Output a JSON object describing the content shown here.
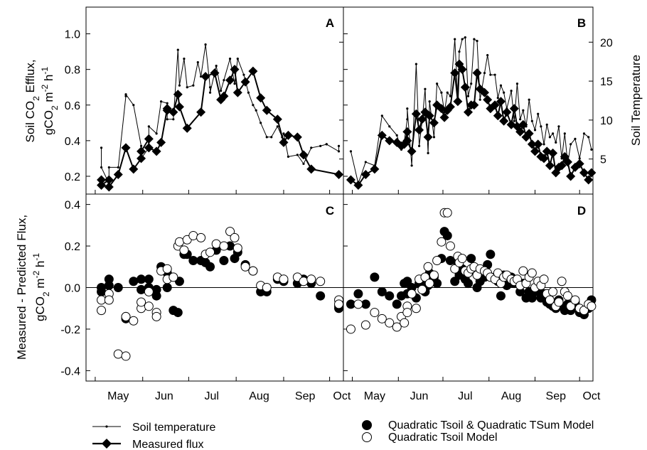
{
  "figure": {
    "y_label_top": {
      "line1": "Soil CO",
      "sub": "2",
      "line1b": " Efflux,",
      "line2a": "gCO",
      "line2sub": "2",
      "line2b": " m",
      "line2sup1": "-2",
      "line2c": " h",
      "line2sup2": "-1"
    },
    "y_label_bottom": {
      "line1": "Measured - Predicted Flux,",
      "line2a": "gCO",
      "line2sub": "2",
      "line2b": " m",
      "line2sup1": "-2",
      "line2c": " h",
      "line2sup2": "-1"
    },
    "y_label_right": "Soil Temperature",
    "month_ticks": [
      "May",
      "Jun",
      "Jul",
      "Aug",
      "Sep",
      "Oct"
    ],
    "legend_left": [
      "Soil temperature",
      "Measured flux"
    ],
    "legend_right": [
      "Quadratic Tsoil & Quadratic TSum Model",
      "Quadratic Tsoil Model"
    ]
  },
  "chart_data": [
    {
      "panel": "A",
      "type": "line",
      "title": "",
      "ylim": [
        0.1,
        1.15
      ],
      "yticks": [
        0.2,
        0.4,
        0.6,
        0.8,
        1.0
      ],
      "temp_ylim": [
        0.5,
        24.5
      ],
      "temp_yticks": [
        5,
        10,
        15,
        20
      ],
      "xlim_day": [
        115,
        283
      ],
      "series": [
        {
          "name": "Soil temperature",
          "x": [
            125,
            125,
            130,
            130,
            136,
            141,
            141,
            146,
            151,
            151,
            156,
            156,
            161,
            164,
            168,
            168,
            172,
            175,
            176,
            179,
            181,
            185,
            188,
            190,
            193,
            196,
            196,
            200,
            203,
            205,
            209,
            212,
            214,
            218,
            221,
            224,
            226,
            229,
            233,
            236,
            240,
            243,
            244,
            247,
            253,
            257,
            262,
            268,
            272,
            272,
            280,
            280
          ],
          "y": [
            0.36,
            0.25,
            0.16,
            0.25,
            0.25,
            0.65,
            0.66,
            0.6,
            0.37,
            0.3,
            0.36,
            0.48,
            0.44,
            0.62,
            0.61,
            0.52,
            0.52,
            0.91,
            0.71,
            0.86,
            0.7,
            0.71,
            0.84,
            0.76,
            0.94,
            0.7,
            0.67,
            0.82,
            0.68,
            0.74,
            0.86,
            0.72,
            0.86,
            0.77,
            0.67,
            0.6,
            0.57,
            0.5,
            0.42,
            0.42,
            0.48,
            0.42,
            0.44,
            0.31,
            0.32,
            0.27,
            0.36,
            0.37,
            0.38,
            0.38,
            0.34,
            0.37
          ]
        },
        {
          "name": "Measured flux",
          "x": [
            125,
            125,
            130,
            130,
            136,
            141,
            146,
            151,
            151,
            156,
            156,
            161,
            164,
            168,
            168,
            172,
            175,
            176,
            181,
            190,
            193,
            199,
            203,
            205,
            209,
            212,
            214,
            219,
            224,
            229,
            233,
            240,
            244,
            247,
            253,
            257,
            262,
            280
          ],
          "y": [
            0.18,
            0.15,
            0.18,
            0.14,
            0.21,
            0.36,
            0.24,
            0.3,
            0.34,
            0.41,
            0.36,
            0.34,
            0.39,
            0.58,
            0.57,
            0.56,
            0.66,
            0.59,
            0.47,
            0.56,
            0.76,
            0.78,
            0.63,
            0.65,
            0.74,
            0.8,
            0.67,
            0.73,
            0.79,
            0.64,
            0.57,
            0.52,
            0.39,
            0.43,
            0.42,
            0.32,
            0.24,
            0.21
          ]
        }
      ]
    },
    {
      "panel": "B",
      "type": "line",
      "title": "",
      "ylim": [
        0.1,
        1.15
      ],
      "yticks": [
        0.2,
        0.4,
        0.6,
        0.8,
        1.0
      ],
      "temp_ylim": [
        0.5,
        24.5
      ],
      "temp_yticks": [
        5,
        10,
        15,
        20
      ],
      "xlim_day": [
        115,
        283
      ],
      "series": [
        {
          "name": "Soil temperature",
          "x": [
            120,
            125,
            130,
            136,
            141,
            146,
            151,
            154,
            156,
            158,
            158,
            161,
            164,
            166,
            168,
            170,
            172,
            173,
            176,
            178,
            181,
            183,
            185,
            187,
            190,
            192,
            193,
            195,
            197,
            199,
            201,
            203,
            205,
            207,
            210,
            212,
            214,
            217,
            219,
            221,
            223,
            225,
            228,
            230,
            232,
            234,
            236,
            238,
            240,
            242,
            244,
            246,
            248,
            250,
            252,
            254,
            256,
            258,
            260,
            262,
            264,
            266,
            268,
            271,
            274,
            277,
            280,
            282
          ],
          "y": [
            0.34,
            0.16,
            0.28,
            0.26,
            0.54,
            0.48,
            0.43,
            0.35,
            0.4,
            0.52,
            0.58,
            0.26,
            0.83,
            0.37,
            0.51,
            0.69,
            0.33,
            0.62,
            0.42,
            0.72,
            0.67,
            0.56,
            0.67,
            0.65,
            0.97,
            0.64,
            0.9,
            0.97,
            0.98,
            0.65,
            0.72,
            0.97,
            0.96,
            0.63,
            0.78,
            0.88,
            0.77,
            0.77,
            0.64,
            0.71,
            0.67,
            0.58,
            0.68,
            0.51,
            0.72,
            0.52,
            0.57,
            0.48,
            0.63,
            0.51,
            0.46,
            0.55,
            0.48,
            0.38,
            0.49,
            0.42,
            0.44,
            0.39,
            0.48,
            0.3,
            0.44,
            0.27,
            0.38,
            0.41,
            0.3,
            0.44,
            0.42,
            0.35
          ]
        },
        {
          "name": "Measured flux",
          "x": [
            120,
            125,
            130,
            136,
            141,
            146,
            151,
            154,
            156,
            158,
            158,
            161,
            164,
            166,
            168,
            170,
            172,
            173,
            176,
            178,
            181,
            183,
            185,
            187,
            190,
            192,
            193,
            195,
            197,
            199,
            201,
            203,
            205,
            207,
            210,
            212,
            214,
            217,
            219,
            221,
            223,
            225,
            228,
            230,
            232,
            234,
            236,
            238,
            240,
            242,
            244,
            246,
            248,
            250,
            252,
            254,
            256,
            258,
            260,
            262,
            264,
            266,
            268,
            271,
            274,
            277,
            280,
            282
          ],
          "y": [
            0.18,
            0.15,
            0.21,
            0.24,
            0.43,
            0.4,
            0.39,
            0.37,
            0.38,
            0.45,
            0.4,
            0.34,
            0.55,
            0.46,
            0.52,
            0.56,
            0.42,
            0.54,
            0.5,
            0.6,
            0.58,
            0.53,
            0.57,
            0.59,
            0.78,
            0.62,
            0.83,
            0.8,
            0.7,
            0.56,
            0.6,
            0.6,
            0.78,
            0.69,
            0.67,
            0.63,
            0.58,
            0.6,
            0.54,
            0.62,
            0.51,
            0.56,
            0.49,
            0.58,
            0.48,
            0.45,
            0.49,
            0.42,
            0.44,
            0.38,
            0.34,
            0.38,
            0.31,
            0.3,
            0.34,
            0.26,
            0.33,
            0.22,
            0.25,
            0.26,
            0.31,
            0.28,
            0.2,
            0.25,
            0.27,
            0.22,
            0.18,
            0.22
          ]
        }
      ]
    },
    {
      "panel": "C",
      "type": "scatter",
      "title": "",
      "ylim": [
        -0.45,
        0.45
      ],
      "yticks": [
        -0.4,
        -0.2,
        0.0,
        0.2,
        0.4
      ],
      "xlim_day": [
        115,
        283
      ],
      "series": [
        {
          "name": "Quadratic Tsoil & Quadratic TSum Model",
          "x": [
            125,
            125,
            130,
            130,
            136,
            141,
            141,
            146,
            151,
            151,
            156,
            156,
            161,
            161,
            164,
            168,
            168,
            172,
            175,
            176,
            179,
            181,
            185,
            190,
            193,
            196,
            200,
            205,
            209,
            212,
            214,
            219,
            224,
            229,
            233,
            240,
            244,
            253,
            257,
            262,
            268,
            280,
            280
          ],
          "y": [
            0.0,
            -0.02,
            0.01,
            0.04,
            0.0,
            -0.14,
            -0.15,
            0.03,
            0.04,
            -0.01,
            0.04,
            0.0,
            -0.04,
            -0.01,
            0.1,
            0.0,
            0.07,
            -0.11,
            -0.12,
            0.03,
            0.16,
            0.16,
            0.13,
            0.13,
            0.12,
            0.1,
            0.18,
            0.13,
            0.2,
            0.14,
            0.17,
            0.11,
            0.08,
            -0.02,
            -0.02,
            0.04,
            0.03,
            0.02,
            0.04,
            0.02,
            -0.04,
            -0.09,
            -0.1
          ]
        },
        {
          "name": "Quadratic Tsoil Model",
          "x": [
            125,
            125,
            130,
            130,
            136,
            141,
            141,
            146,
            151,
            151,
            156,
            156,
            161,
            161,
            164,
            168,
            168,
            172,
            175,
            176,
            179,
            181,
            185,
            190,
            193,
            196,
            200,
            205,
            209,
            212,
            214,
            219,
            224,
            229,
            233,
            240,
            244,
            253,
            257,
            262,
            268,
            280,
            280
          ],
          "y": [
            -0.06,
            -0.11,
            -0.03,
            -0.06,
            -0.32,
            -0.33,
            -0.14,
            -0.16,
            -0.1,
            -0.07,
            -0.09,
            -0.02,
            -0.12,
            -0.14,
            0.08,
            0.09,
            0.04,
            0.05,
            0.2,
            0.22,
            0.18,
            0.23,
            0.25,
            0.24,
            0.16,
            0.17,
            0.21,
            0.2,
            0.27,
            0.24,
            0.19,
            0.1,
            0.08,
            0.01,
            0.0,
            0.05,
            0.04,
            0.05,
            0.03,
            0.04,
            0.03,
            -0.06,
            -0.08
          ]
        }
      ]
    },
    {
      "panel": "D",
      "type": "scatter",
      "title": "",
      "ylim": [
        -0.45,
        0.45
      ],
      "yticks": [
        -0.4,
        -0.2,
        0.0,
        0.2,
        0.4
      ],
      "xlim_day": [
        115,
        283
      ],
      "series": [
        {
          "name": "Quadratic Tsoil & Quadratic TSum Model",
          "x": [
            120,
            125,
            130,
            136,
            141,
            146,
            151,
            154,
            156,
            158,
            158,
            161,
            164,
            166,
            168,
            170,
            172,
            173,
            176,
            178,
            181,
            183,
            185,
            187,
            190,
            192,
            193,
            195,
            197,
            199,
            201,
            203,
            205,
            207,
            210,
            212,
            214,
            217,
            219,
            221,
            223,
            225,
            228,
            230,
            232,
            234,
            236,
            238,
            240,
            242,
            244,
            246,
            248,
            250,
            252,
            254,
            256,
            258,
            260,
            262,
            264,
            266,
            268,
            271,
            274,
            277,
            280,
            282
          ],
          "y": [
            -0.08,
            -0.03,
            -0.08,
            0.05,
            -0.02,
            -0.04,
            -0.08,
            -0.04,
            0.02,
            -0.03,
            0.03,
            0.0,
            -0.05,
            0.02,
            0.04,
            -0.02,
            0.01,
            0.07,
            0.05,
            0.02,
            0.14,
            0.27,
            0.25,
            0.13,
            0.03,
            0.12,
            0.06,
            0.09,
            0.04,
            0.02,
            0.14,
            0.08,
            0.0,
            0.03,
            0.05,
            0.11,
            0.16,
            0.05,
            0.03,
            -0.04,
            0.06,
            0.01,
            0.05,
            0.02,
            0.02,
            -0.02,
            0.02,
            -0.05,
            -0.02,
            -0.05,
            -0.01,
            -0.02,
            -0.05,
            -0.03,
            -0.07,
            -0.08,
            -0.09,
            -0.1,
            -0.06,
            -0.09,
            -0.11,
            -0.08,
            -0.11,
            -0.07,
            -0.12,
            -0.13,
            -0.1,
            -0.06
          ]
        },
        {
          "name": "Quadratic Tsoil Model",
          "x": [
            120,
            125,
            130,
            136,
            141,
            146,
            151,
            154,
            156,
            158,
            158,
            161,
            164,
            166,
            168,
            170,
            172,
            173,
            176,
            178,
            181,
            183,
            185,
            187,
            190,
            192,
            193,
            195,
            197,
            199,
            201,
            203,
            205,
            207,
            210,
            212,
            214,
            217,
            219,
            221,
            223,
            225,
            228,
            230,
            232,
            234,
            236,
            238,
            240,
            242,
            244,
            246,
            248,
            250,
            252,
            254,
            256,
            258,
            260,
            262,
            264,
            266,
            268,
            271,
            274,
            277,
            280,
            282
          ],
          "y": [
            -0.2,
            -0.08,
            -0.18,
            -0.12,
            -0.15,
            -0.17,
            -0.19,
            -0.14,
            -0.17,
            -0.09,
            -0.12,
            -0.03,
            -0.1,
            0.04,
            -0.01,
            0.05,
            0.1,
            0.02,
            0.06,
            0.13,
            0.22,
            0.36,
            0.36,
            0.2,
            0.09,
            0.15,
            0.12,
            0.14,
            0.08,
            0.07,
            0.09,
            0.1,
            0.06,
            0.09,
            0.08,
            0.07,
            0.05,
            0.04,
            0.07,
            0.02,
            0.05,
            0.06,
            0.04,
            0.03,
            0.04,
            0.01,
            0.08,
            0.02,
            0.05,
            0.07,
            0.0,
            0.03,
            0.01,
            0.04,
            -0.03,
            -0.06,
            -0.02,
            -0.09,
            -0.07,
            0.03,
            -0.02,
            -0.04,
            -0.09,
            -0.06,
            -0.1,
            -0.11,
            -0.08,
            -0.09
          ]
        }
      ]
    }
  ]
}
